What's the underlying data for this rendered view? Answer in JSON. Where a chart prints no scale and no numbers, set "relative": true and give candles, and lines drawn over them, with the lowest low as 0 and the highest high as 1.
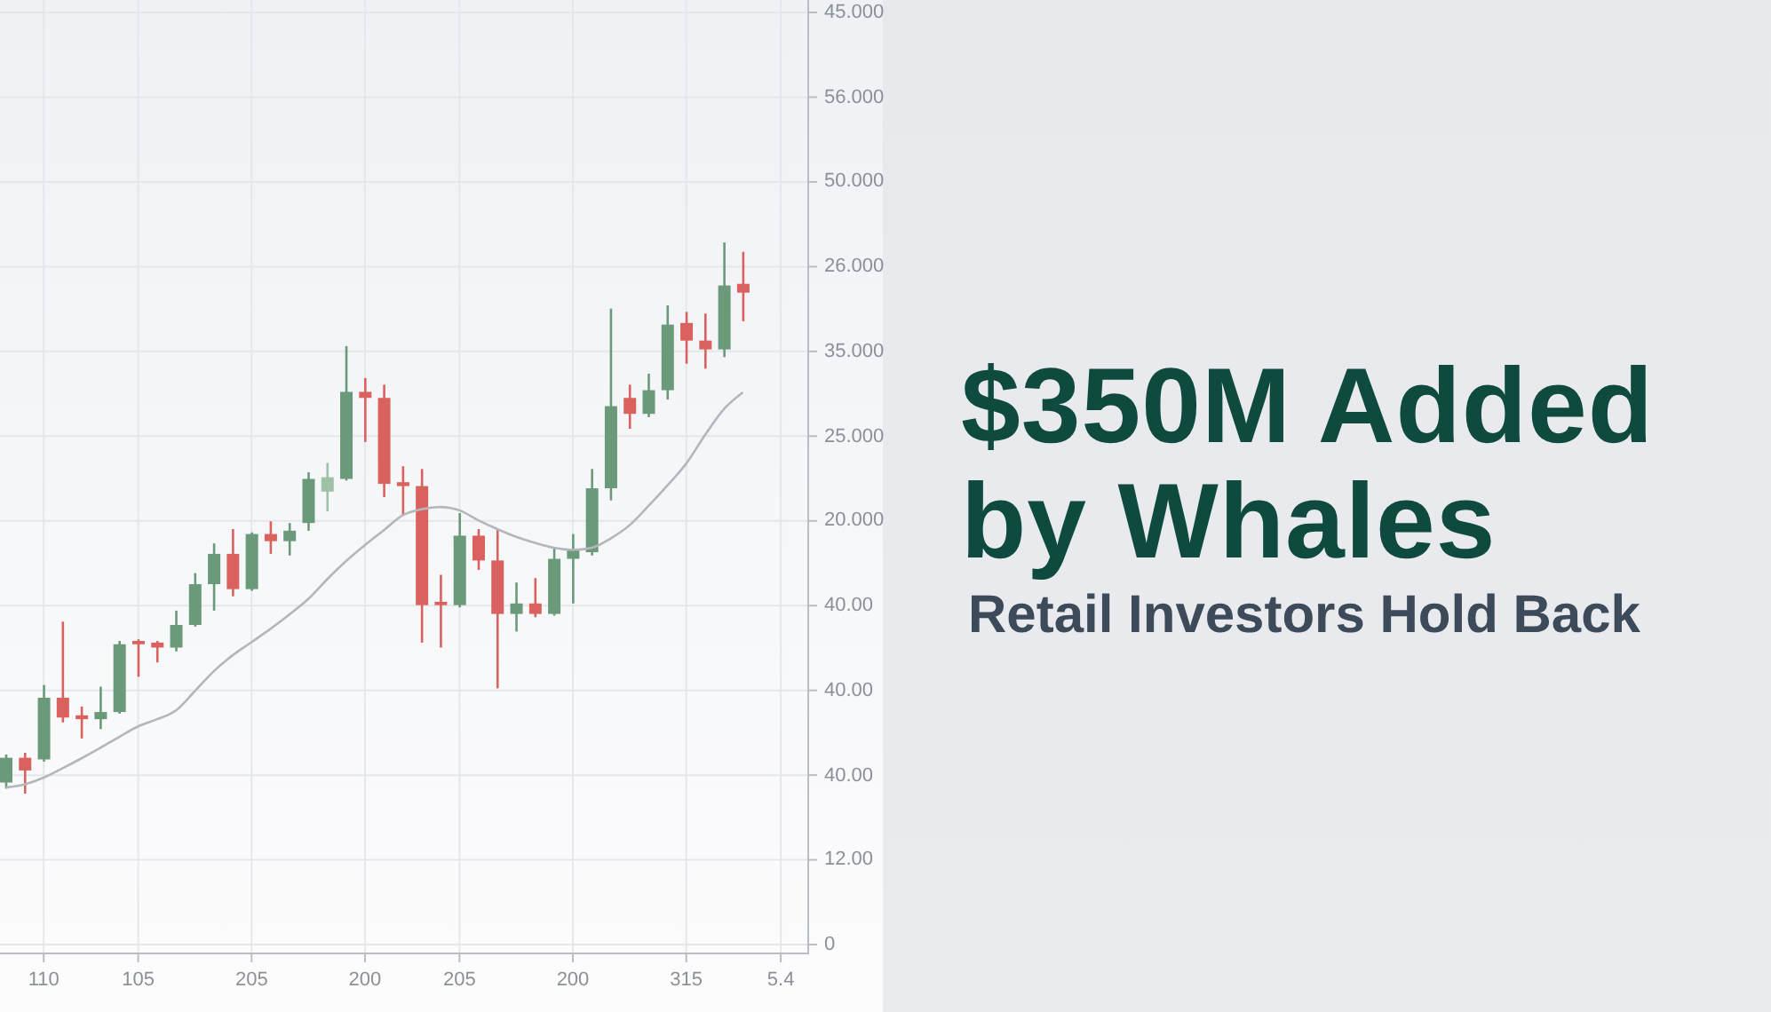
{
  "chart_data": {
    "type": "candlestick",
    "title": "$350M Added by Whales",
    "subtitle": "Retail Investors Hold Back",
    "relative": true,
    "categories": [
      null,
      null,
      "110",
      null,
      null,
      null,
      null,
      "105",
      null,
      null,
      null,
      null,
      null,
      "205",
      null,
      null,
      null,
      null,
      null,
      "200",
      null,
      null,
      null,
      null,
      "205",
      null,
      null,
      null,
      null,
      null,
      "200",
      null,
      null,
      null,
      null,
      null,
      "315",
      null,
      null,
      null,
      null,
      "5.4",
      null
    ],
    "ohlc": [
      [
        0.02,
        0.071,
        0.009,
        0.065
      ],
      [
        0.065,
        0.074,
        0.0,
        0.042
      ],
      [
        0.062,
        0.197,
        0.058,
        0.174
      ],
      [
        0.174,
        0.312,
        0.129,
        0.138
      ],
      [
        0.142,
        0.158,
        0.1,
        0.135
      ],
      [
        0.135,
        0.194,
        0.117,
        0.148
      ],
      [
        0.148,
        0.277,
        0.145,
        0.271
      ],
      [
        0.277,
        0.28,
        0.212,
        0.271
      ],
      [
        0.274,
        0.277,
        0.238,
        0.265
      ],
      [
        0.265,
        0.332,
        0.258,
        0.306
      ],
      [
        0.306,
        0.4,
        0.303,
        0.38
      ],
      [
        0.38,
        0.454,
        0.332,
        0.435
      ],
      [
        0.435,
        0.48,
        0.358,
        0.371
      ],
      [
        0.371,
        0.474,
        0.368,
        0.471
      ],
      [
        0.471,
        0.494,
        0.435,
        0.458
      ],
      [
        0.458,
        0.491,
        0.432,
        0.477
      ],
      [
        0.491,
        0.583,
        0.477,
        0.571
      ],
      [
        0.548,
        0.6,
        0.512,
        0.574
      ],
      [
        0.571,
        0.812,
        0.568,
        0.729
      ],
      [
        0.729,
        0.754,
        0.638,
        0.718
      ],
      [
        0.718,
        0.742,
        0.538,
        0.562
      ],
      [
        0.565,
        0.594,
        0.506,
        0.558
      ],
      [
        0.558,
        0.589,
        0.274,
        0.342
      ],
      [
        0.348,
        0.397,
        0.265,
        0.342
      ],
      [
        0.342,
        0.509,
        0.338,
        0.468
      ],
      [
        0.468,
        0.48,
        0.406,
        0.423
      ],
      [
        0.423,
        0.48,
        0.191,
        0.326
      ],
      [
        0.326,
        0.383,
        0.294,
        0.345
      ],
      [
        0.345,
        0.391,
        0.32,
        0.326
      ],
      [
        0.326,
        0.445,
        0.323,
        0.426
      ],
      [
        0.426,
        0.471,
        0.345,
        0.442
      ],
      [
        0.438,
        0.589,
        0.432,
        0.554
      ],
      [
        0.554,
        0.88,
        0.532,
        0.703
      ],
      [
        0.718,
        0.742,
        0.662,
        0.689
      ],
      [
        0.689,
        0.762,
        0.683,
        0.732
      ],
      [
        0.732,
        0.886,
        0.715,
        0.851
      ],
      [
        0.854,
        0.874,
        0.78,
        0.822
      ],
      [
        0.822,
        0.871,
        0.771,
        0.806
      ],
      [
        0.806,
        1.0,
        0.792,
        0.922
      ],
      [
        0.925,
        0.983,
        0.857,
        0.909
      ],
      null,
      null,
      null
    ],
    "colors": [
      "#6b9a7a",
      "#d9625f",
      "#6b9a7a",
      "#d9625f",
      "#d9625f",
      "#6b9a7a",
      "#6b9a7a",
      "#d9625f",
      "#d9625f",
      "#6b9a7a",
      "#6b9a7a",
      "#6b9a7a",
      "#d9625f",
      "#6b9a7a",
      "#d9625f",
      "#6b9a7a",
      "#6b9a7a",
      "#9dc2a8",
      "#6b9a7a",
      "#d9625f",
      "#d9625f",
      "#d9625f",
      "#d9625f",
      "#d9625f",
      "#6b9a7a",
      "#d9625f",
      "#d9625f",
      "#6b9a7a",
      "#d9625f",
      "#6b9a7a",
      "#6b9a7a",
      "#6b9a7a",
      "#6b9a7a",
      "#d9625f",
      "#6b9a7a",
      "#6b9a7a",
      "#d9625f",
      "#d9625f",
      "#6b9a7a",
      "#d9625f",
      null,
      null,
      null
    ],
    "series": [
      {
        "type": "line",
        "color": "#b3b6bb",
        "values": [
          0.011,
          0.017,
          0.029,
          0.046,
          0.064,
          0.083,
          0.103,
          0.122,
          0.135,
          0.151,
          0.186,
          0.222,
          0.251,
          0.275,
          0.299,
          0.325,
          0.353,
          0.389,
          0.422,
          0.451,
          0.478,
          0.505,
          0.516,
          0.52,
          0.514,
          0.496,
          0.48,
          0.466,
          0.455,
          0.446,
          0.442,
          0.446,
          0.463,
          0.487,
          0.522,
          0.559,
          0.599,
          0.651,
          0.698,
          0.728,
          null,
          null,
          null
        ]
      }
    ],
    "annotations": [
      "45.000",
      "56.000",
      "50.000",
      "26.000",
      "35.000",
      "25.000",
      "20.000",
      "40.00",
      "40.00",
      "40.00",
      "12.00",
      "0"
    ],
    "grid": true
  }
}
